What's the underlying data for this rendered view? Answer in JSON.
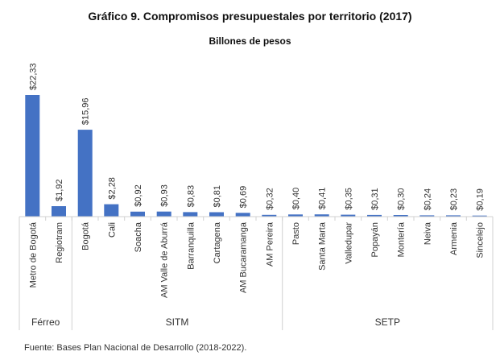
{
  "title": "Gráfico 9. Compromisos presupuestales por territorio (2017)",
  "subtitle": "Billones de pesos",
  "source": "Fuente: Bases Plan Nacional de Desarrollo (2018-2022).",
  "colors": {
    "bar": "#4472C4",
    "axis": "#d0d0d0",
    "text": "#333333"
  },
  "chart_data": {
    "type": "bar",
    "title": "Gráfico 9. Compromisos presupuestales por territorio (2017)",
    "subtitle": "Billones de pesos",
    "categories": [
      "Metro de Bogotá",
      "Regiotram",
      "Bogotá",
      "Cali",
      "Soacha",
      "AM Valle de Aburrá",
      "Barranquilla",
      "Cartagena",
      "AM Bucaramanga",
      "AM Pereira",
      "Pasto",
      "Santa Marta",
      "Valledupar",
      "Popayán",
      "Montería",
      "Neiva",
      "Armenia",
      "Sincelejo"
    ],
    "values": [
      22.33,
      1.92,
      15.96,
      2.28,
      0.92,
      0.93,
      0.83,
      0.81,
      0.69,
      0.32,
      0.4,
      0.41,
      0.35,
      0.31,
      0.3,
      0.24,
      0.23,
      0.19
    ],
    "data_labels": [
      "$22,33",
      "$1,92",
      "$15,96",
      "$2,28",
      "$0,92",
      "$0,93",
      "$0,83",
      "$0,81",
      "$0,69",
      "$0,32",
      "$0,40",
      "$0,41",
      "$0,35",
      "$0,31",
      "$0,30",
      "$0,24",
      "$0,23",
      "$0,19"
    ],
    "groups": [
      {
        "name": "Férreo",
        "start": 0,
        "end": 1
      },
      {
        "name": "SITM",
        "start": 2,
        "end": 9
      },
      {
        "name": "SETP",
        "start": 10,
        "end": 17
      }
    ],
    "ylim": [
      0,
      22.33
    ],
    "xlabel": "",
    "ylabel": "",
    "grid": false
  }
}
